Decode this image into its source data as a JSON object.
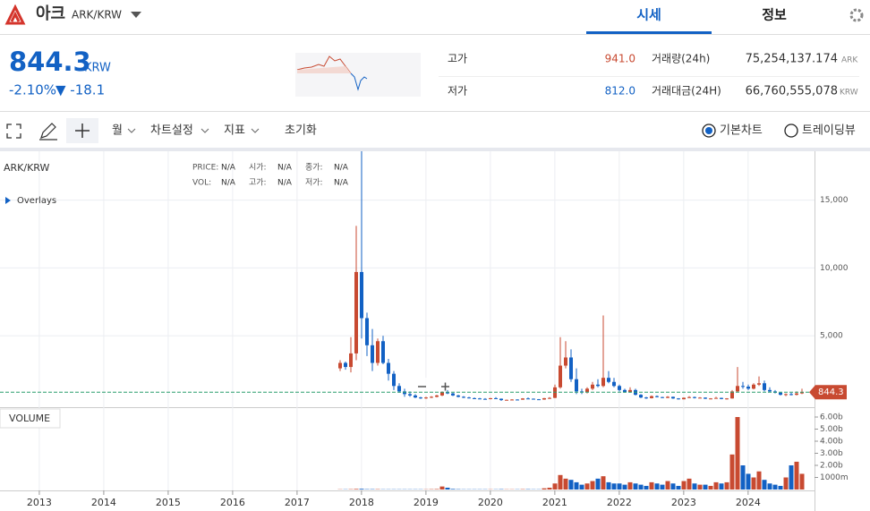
{
  "header": {
    "name": "아크",
    "pair": "ARK/KRW",
    "tabs": [
      "시세",
      "정보"
    ]
  },
  "price": {
    "value": "844.3",
    "unit": "KRW",
    "change_rate": "-2.10%",
    "change": "▼ -18.1"
  },
  "stats": [
    {
      "label": "고가",
      "value": "941.0"
    },
    {
      "label": "거래량(24h)",
      "value": "75,254,137.174",
      "unit": "ARK"
    },
    {
      "label": "저가",
      "value": "812.0"
    },
    {
      "label": "거래대금(24H)",
      "value": "66,760,555,078",
      "unit": "KRW"
    }
  ],
  "toolbar": {
    "menus": [
      "월",
      "차트설정",
      "지표"
    ],
    "reset": "초기화",
    "modes": [
      "기본차트",
      "트레이딩뷰"
    ]
  },
  "chart_data": {
    "type": "candlestick",
    "title": "ARK/KRW",
    "overlays": "Overlays",
    "volume_label": "VOLUME",
    "info": [
      [
        "PRICE:",
        "N/A"
      ],
      [
        "시가:",
        "N/A"
      ],
      [
        "종가:",
        "N/A"
      ],
      [
        "VOL:",
        "N/A"
      ],
      [
        "고가:",
        "N/A"
      ],
      [
        "저가:",
        "N/A"
      ]
    ],
    "up_color": "#c84a31",
    "down_color": "#1261c4",
    "candles": [
      [
        2600,
        3200,
        2400,
        3000
      ],
      [
        3000,
        3100,
        2500,
        2700
      ],
      [
        2700,
        4900,
        2300,
        3700
      ],
      [
        3700,
        13100,
        3200,
        9700
      ],
      [
        9700,
        18600,
        4800,
        6300
      ],
      [
        6300,
        6700,
        3500,
        4300
      ],
      [
        4300,
        5500,
        2400,
        3000
      ],
      [
        3000,
        4800,
        2800,
        4600
      ],
      [
        4600,
        5000,
        2900,
        3000
      ],
      [
        3000,
        3300,
        1700,
        2200
      ],
      [
        2200,
        2400,
        1000,
        1300
      ],
      [
        1300,
        1500,
        800,
        900
      ],
      [
        900,
        1100,
        500,
        700
      ],
      [
        700,
        900,
        500,
        600
      ],
      [
        600,
        700,
        400,
        450
      ],
      [
        450,
        500,
        350,
        400
      ],
      [
        400,
        500,
        350,
        450
      ],
      [
        450,
        550,
        400,
        500
      ],
      [
        500,
        650,
        450,
        600
      ],
      [
        600,
        900,
        550,
        850
      ],
      [
        850,
        1000,
        700,
        750
      ],
      [
        750,
        800,
        550,
        600
      ],
      [
        600,
        650,
        450,
        500
      ],
      [
        500,
        550,
        400,
        450
      ],
      [
        450,
        500,
        380,
        400
      ],
      [
        400,
        450,
        350,
        380
      ],
      [
        380,
        420,
        320,
        350
      ],
      [
        350,
        400,
        300,
        330
      ],
      [
        330,
        420,
        310,
        400
      ],
      [
        400,
        480,
        350,
        360
      ],
      [
        360,
        380,
        200,
        260
      ],
      [
        260,
        300,
        240,
        280
      ],
      [
        280,
        330,
        260,
        300
      ],
      [
        300,
        320,
        270,
        290
      ],
      [
        290,
        400,
        280,
        380
      ],
      [
        380,
        450,
        340,
        360
      ],
      [
        360,
        380,
        300,
        320
      ],
      [
        320,
        340,
        280,
        300
      ],
      [
        300,
        420,
        280,
        400
      ],
      [
        400,
        480,
        350,
        420
      ],
      [
        420,
        1400,
        400,
        1200
      ],
      [
        1200,
        4900,
        1100,
        2800
      ],
      [
        2800,
        4600,
        2600,
        3400
      ],
      [
        3400,
        4000,
        1600,
        1800
      ],
      [
        1800,
        2600,
        700,
        900
      ],
      [
        900,
        1100,
        700,
        850
      ],
      [
        850,
        1200,
        750,
        1100
      ],
      [
        1100,
        1600,
        1000,
        1400
      ],
      [
        1400,
        1800,
        1200,
        1300
      ],
      [
        1300,
        6500,
        1200,
        1900
      ],
      [
        1900,
        2400,
        1500,
        1600
      ],
      [
        1600,
        1900,
        1200,
        1300
      ],
      [
        1300,
        1400,
        900,
        1000
      ],
      [
        1000,
        1100,
        800,
        850
      ],
      [
        850,
        1200,
        800,
        1000
      ],
      [
        1000,
        1100,
        600,
        650
      ],
      [
        650,
        700,
        400,
        450
      ],
      [
        450,
        500,
        350,
        400
      ],
      [
        400,
        600,
        380,
        550
      ],
      [
        550,
        600,
        450,
        480
      ],
      [
        480,
        500,
        400,
        420
      ],
      [
        420,
        550,
        400,
        500
      ],
      [
        500,
        520,
        350,
        380
      ],
      [
        380,
        400,
        300,
        320
      ],
      [
        320,
        450,
        310,
        430
      ],
      [
        430,
        550,
        400,
        480
      ],
      [
        480,
        520,
        380,
        420
      ],
      [
        420,
        480,
        400,
        440
      ],
      [
        440,
        460,
        340,
        360
      ],
      [
        360,
        400,
        320,
        380
      ],
      [
        380,
        500,
        360,
        420
      ],
      [
        420,
        440,
        320,
        340
      ],
      [
        340,
        400,
        300,
        380
      ],
      [
        380,
        1000,
        360,
        900
      ],
      [
        900,
        2700,
        850,
        1300
      ],
      [
        1300,
        1600,
        1100,
        1250
      ],
      [
        1250,
        1400,
        1000,
        1100
      ],
      [
        1100,
        1500,
        1050,
        1400
      ],
      [
        1400,
        2000,
        1300,
        1500
      ],
      [
        1500,
        1700,
        900,
        1000
      ],
      [
        1000,
        1200,
        850,
        900
      ],
      [
        900,
        1000,
        750,
        800
      ],
      [
        800,
        850,
        600,
        650
      ],
      [
        650,
        750,
        550,
        700
      ],
      [
        700,
        800,
        600,
        650
      ],
      [
        650,
        900,
        600,
        750
      ],
      [
        750,
        1100,
        700,
        844.3
      ]
    ],
    "volumes": [
      0.02,
      0.02,
      0.03,
      0.05,
      0.06,
      0.03,
      0.03,
      0.03,
      0.02,
      0.02,
      0.02,
      0.02,
      0.02,
      0.02,
      0.02,
      0.02,
      0.02,
      0.03,
      0.04,
      0.25,
      0.15,
      0.05,
      0.03,
      0.02,
      0.02,
      0.02,
      0.02,
      0.02,
      0.02,
      0.02,
      0.03,
      0.02,
      0.02,
      0.02,
      0.03,
      0.03,
      0.02,
      0.02,
      0.1,
      0.15,
      0.5,
      1.2,
      0.9,
      0.8,
      0.6,
      0.4,
      0.5,
      0.7,
      0.9,
      1.1,
      0.6,
      0.5,
      0.5,
      0.4,
      0.6,
      0.5,
      0.4,
      0.3,
      0.6,
      0.5,
      0.4,
      0.7,
      0.5,
      0.3,
      0.7,
      0.9,
      0.5,
      0.4,
      0.4,
      0.3,
      0.6,
      0.5,
      0.6,
      2.9,
      6.0,
      2.0,
      1.3,
      1.0,
      1.5,
      0.8,
      0.5,
      0.4,
      0.3,
      1.0,
      2.0,
      2.3,
      1.3
    ],
    "xlim": [
      2012.39,
      2025.03
    ],
    "xticks": [
      2013,
      2014,
      2015,
      2016,
      2017,
      2018,
      2019,
      2020,
      2021,
      2022,
      2023,
      2024
    ],
    "ylim": [
      0,
      18600
    ],
    "yticks": [
      {
        "value": 5000,
        "label": "5,000"
      },
      {
        "value": 10000,
        "label": "10,000"
      },
      {
        "value": 15000,
        "label": "15,000"
      }
    ],
    "vlim": [
      0,
      6.74
    ],
    "vticks": [
      {
        "value": 1,
        "label": "1000m"
      },
      {
        "value": 2,
        "label": "2.00b"
      },
      {
        "value": 3,
        "label": "3.00b"
      },
      {
        "value": 4,
        "label": "4.00b"
      },
      {
        "value": 5,
        "label": "5.00b"
      },
      {
        "value": 6,
        "label": "6.00b"
      }
    ],
    "last_label": "844.3",
    "grid": true
  }
}
